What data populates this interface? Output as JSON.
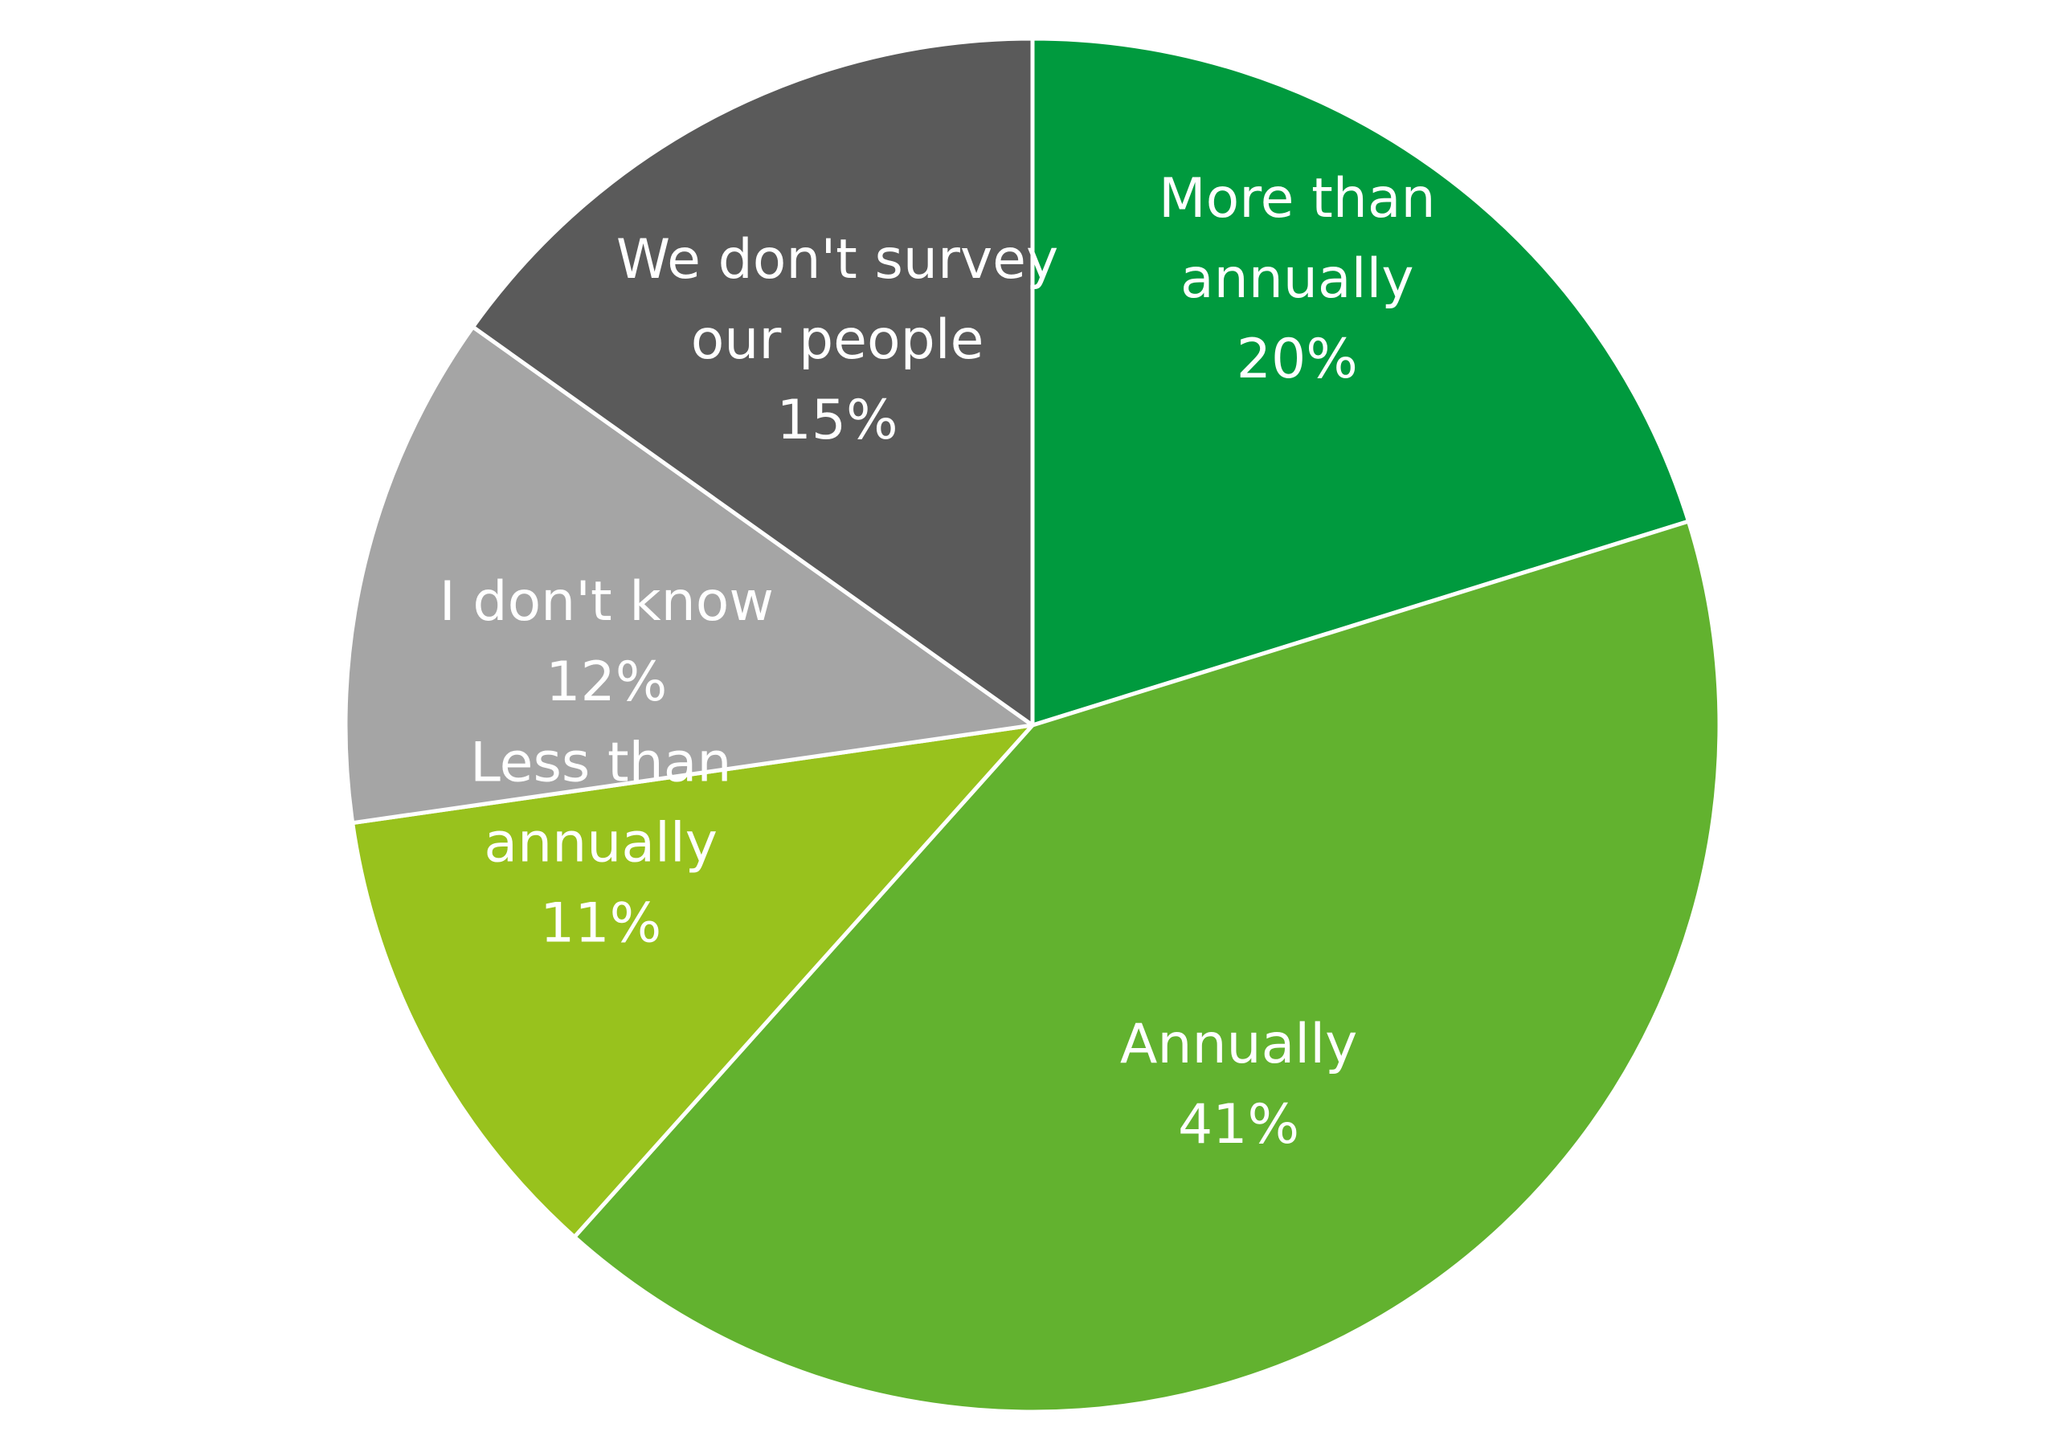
{
  "chart_data": {
    "type": "pie",
    "slices": [
      {
        "label_lines": [
          "More than",
          "annually"
        ],
        "value": 20,
        "value_label": "20%",
        "color": "#009a3e"
      },
      {
        "label_lines": [
          "Annually"
        ],
        "value": 41,
        "value_label": "41%",
        "color": "#62b22f"
      },
      {
        "label_lines": [
          "Less than",
          "annually"
        ],
        "value": 11,
        "value_label": "11%",
        "color": "#98c21d"
      },
      {
        "label_lines": [
          "I don't know"
        ],
        "value": 12,
        "value_label": "12%",
        "color": "#a5a5a5"
      },
      {
        "label_lines": [
          "We don't survey",
          "our people"
        ],
        "value": 15,
        "value_label": "15%",
        "color": "#5a5a5a"
      }
    ],
    "start_angle_deg": 0,
    "direction": "clockwise",
    "separator_color": "#ffffff",
    "legend": "none",
    "data_labels": "inside"
  }
}
